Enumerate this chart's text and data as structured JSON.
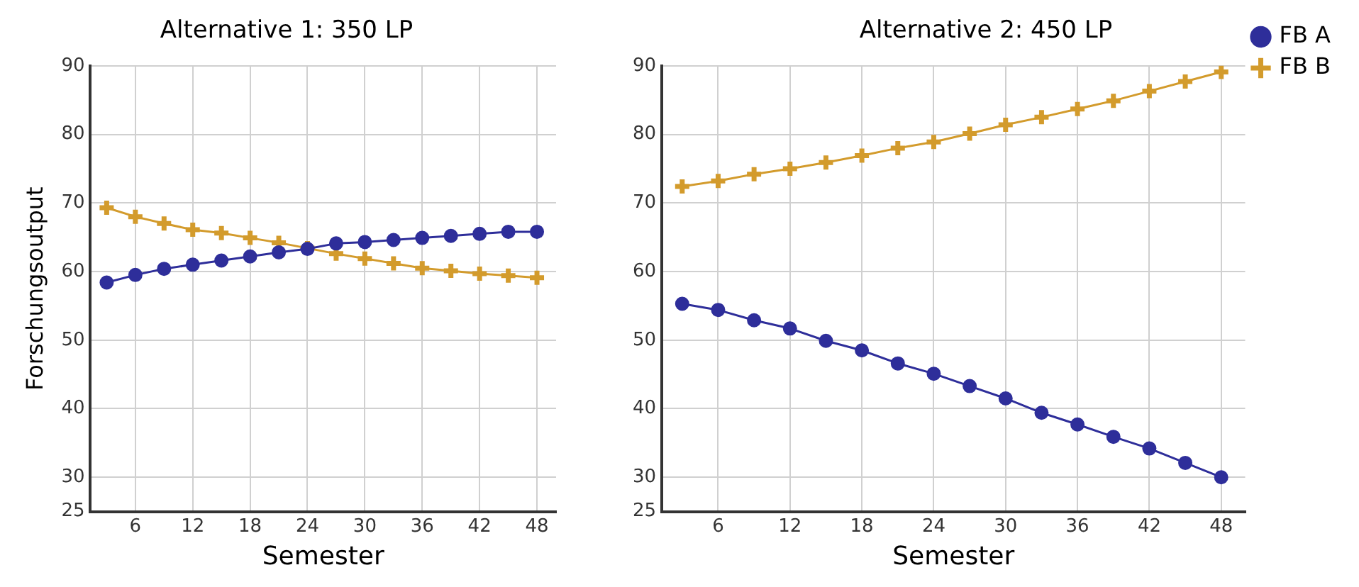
{
  "chart_data": [
    {
      "type": "line",
      "title": "Alternative 1: 350 LP",
      "xlabel": "Semester",
      "ylabel": "Forschungsoutput",
      "x": [
        3,
        6,
        9,
        12,
        15,
        18,
        21,
        24,
        27,
        30,
        33,
        36,
        39,
        42,
        45,
        48
      ],
      "series": [
        {
          "color": "#2e2e9a",
          "marker": "circle",
          "values": [
            58.4,
            59.5,
            60.4,
            61.0,
            61.6,
            62.2,
            62.8,
            63.3,
            64.1,
            64.3,
            64.6,
            64.9,
            65.2,
            65.5,
            65.8,
            65.8
          ]
        },
        {
          "color": "#d39b2c",
          "marker": "cross",
          "values": [
            69.3,
            68.0,
            67.0,
            66.1,
            65.6,
            64.9,
            64.2,
            63.4,
            62.6,
            61.9,
            61.2,
            60.5,
            60.1,
            59.7,
            59.4,
            59.1
          ]
        }
      ],
      "xlim": [
        1.3,
        50
      ],
      "xticks": [
        6,
        12,
        18,
        24,
        30,
        36,
        42,
        48
      ],
      "ylim": [
        25,
        90
      ],
      "yticks": [
        25,
        30,
        40,
        50,
        60,
        70,
        80,
        90
      ],
      "grid": true,
      "legend": false
    },
    {
      "type": "line",
      "title": "Alternative 2: 450 LP",
      "xlabel": "Semester",
      "x": [
        3,
        6,
        9,
        12,
        15,
        18,
        21,
        24,
        27,
        30,
        33,
        36,
        39,
        42,
        45,
        48
      ],
      "series": [
        {
          "name": "FB A",
          "color": "#2e2e9a",
          "marker": "circle",
          "values": [
            55.3,
            54.4,
            52.9,
            51.7,
            49.9,
            48.5,
            46.6,
            45.1,
            43.3,
            41.5,
            39.4,
            37.7,
            35.9,
            34.2,
            32.1,
            30.0
          ]
        },
        {
          "name": "FB B",
          "color": "#d39b2c",
          "marker": "cross",
          "values": [
            72.4,
            73.2,
            74.2,
            75.0,
            75.9,
            76.9,
            78.0,
            78.9,
            80.1,
            81.4,
            82.5,
            83.7,
            84.9,
            86.3,
            87.7,
            89.1
          ]
        }
      ],
      "xlim": [
        1.3,
        50
      ],
      "xticks": [
        6,
        12,
        18,
        24,
        30,
        36,
        42,
        48
      ],
      "ylim": [
        25,
        90
      ],
      "yticks": [
        25,
        30,
        40,
        50,
        60,
        70,
        80,
        90
      ],
      "grid": true,
      "legend": "top right"
    }
  ]
}
